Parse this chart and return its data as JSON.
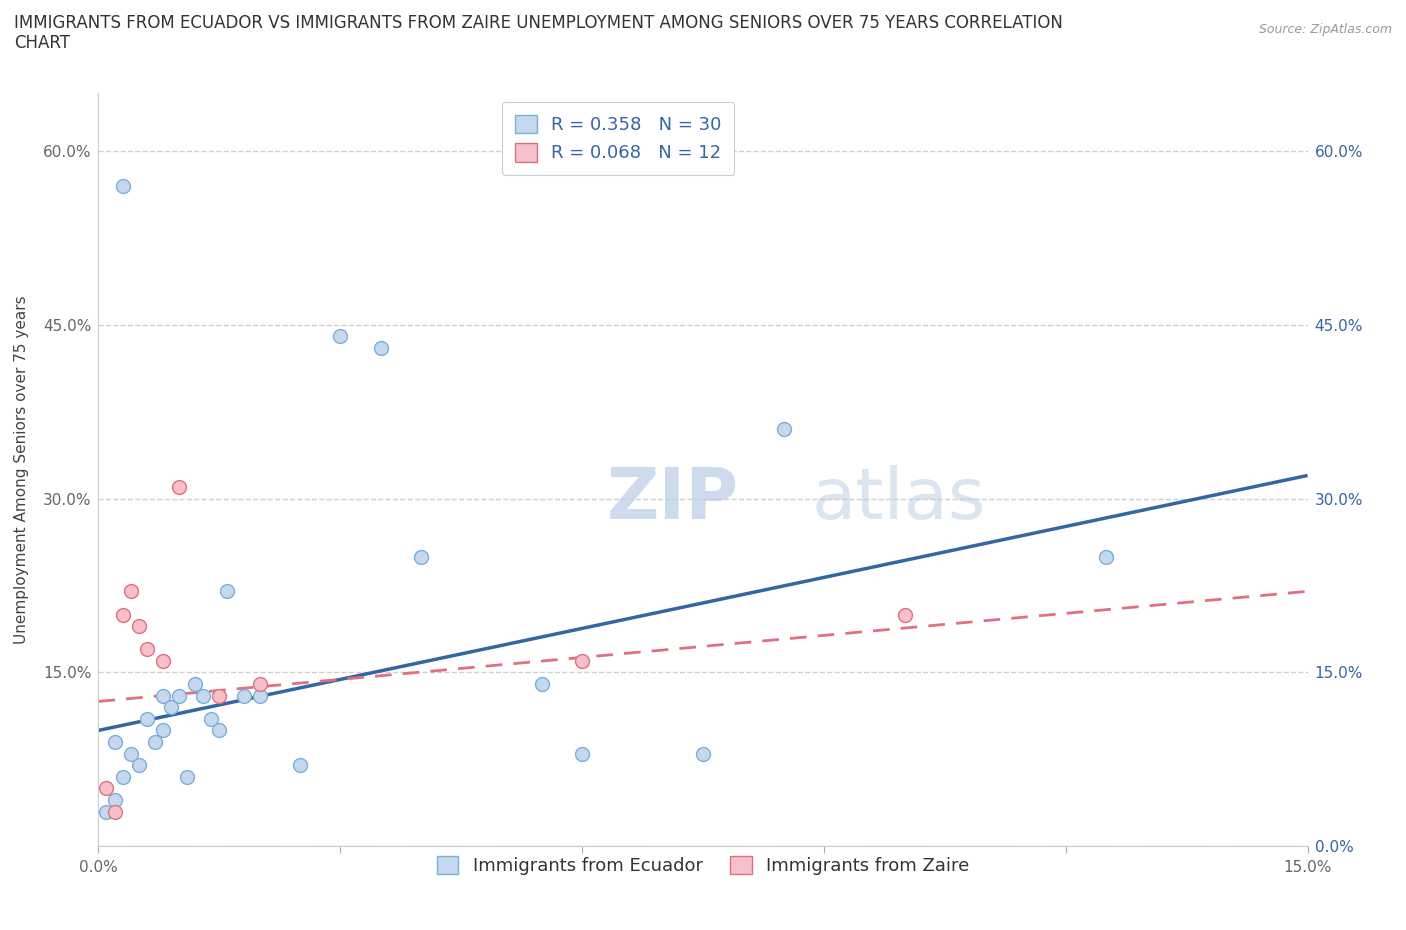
{
  "title_line1": "IMMIGRANTS FROM ECUADOR VS IMMIGRANTS FROM ZAIRE UNEMPLOYMENT AMONG SENIORS OVER 75 YEARS CORRELATION",
  "title_line2": "CHART",
  "source": "Source: ZipAtlas.com",
  "xlabel_label": "Immigrants from Ecuador",
  "ylabel_label": "Unemployment Among Seniors over 75 years",
  "xmin": 0.0,
  "xmax": 0.15,
  "ymin": 0.0,
  "ymax": 0.65,
  "xticks": [
    0.0,
    0.03,
    0.06,
    0.09,
    0.12,
    0.15
  ],
  "ytick_vals": [
    0.0,
    0.15,
    0.3,
    0.45,
    0.6
  ],
  "ytick_labels_left": [
    "",
    "15.0%",
    "30.0%",
    "45.0%",
    "60.0%"
  ],
  "ytick_labels_right": [
    "0.0%",
    "15.0%",
    "30.0%",
    "45.0%",
    "60.0%"
  ],
  "xtick_labels": [
    "0.0%",
    "",
    "",
    "",
    "",
    "15.0%"
  ],
  "grid_color": "#d0d0d0",
  "background_color": "#ffffff",
  "watermark_zip": "ZIP",
  "watermark_atlas": "atlas",
  "ecuador_color": "#c5d8f0",
  "ecuador_edge": "#7bafd4",
  "zaire_color": "#f5c0ca",
  "zaire_edge": "#e07080",
  "ecuador_R": 0.358,
  "ecuador_N": 30,
  "zaire_R": 0.068,
  "zaire_N": 12,
  "ecuador_line_color": "#3465a4",
  "zaire_line_color": "#e07080",
  "ecuador_line_x0": 0.0,
  "ecuador_line_y0": 0.1,
  "ecuador_line_x1": 0.15,
  "ecuador_line_y1": 0.32,
  "zaire_line_x0": 0.0,
  "zaire_line_y0": 0.125,
  "zaire_line_x1": 0.15,
  "zaire_line_y1": 0.22,
  "ecuador_scatter_x": [
    0.001,
    0.002,
    0.002,
    0.003,
    0.003,
    0.004,
    0.005,
    0.006,
    0.007,
    0.008,
    0.008,
    0.009,
    0.01,
    0.011,
    0.012,
    0.013,
    0.014,
    0.015,
    0.016,
    0.018,
    0.02,
    0.025,
    0.03,
    0.035,
    0.04,
    0.055,
    0.06,
    0.075,
    0.085,
    0.125
  ],
  "ecuador_scatter_y": [
    0.03,
    0.04,
    0.09,
    0.57,
    0.06,
    0.08,
    0.07,
    0.11,
    0.09,
    0.13,
    0.1,
    0.12,
    0.13,
    0.06,
    0.14,
    0.13,
    0.11,
    0.1,
    0.22,
    0.13,
    0.13,
    0.07,
    0.44,
    0.43,
    0.25,
    0.14,
    0.08,
    0.08,
    0.36,
    0.25
  ],
  "zaire_scatter_x": [
    0.001,
    0.002,
    0.003,
    0.004,
    0.005,
    0.006,
    0.008,
    0.01,
    0.015,
    0.02,
    0.06,
    0.1
  ],
  "zaire_scatter_y": [
    0.05,
    0.03,
    0.2,
    0.22,
    0.19,
    0.17,
    0.16,
    0.31,
    0.13,
    0.14,
    0.16,
    0.2
  ],
  "marker_size": 100,
  "legend_fontsize": 13,
  "title_fontsize": 12,
  "axis_label_fontsize": 11,
  "tick_fontsize": 11
}
